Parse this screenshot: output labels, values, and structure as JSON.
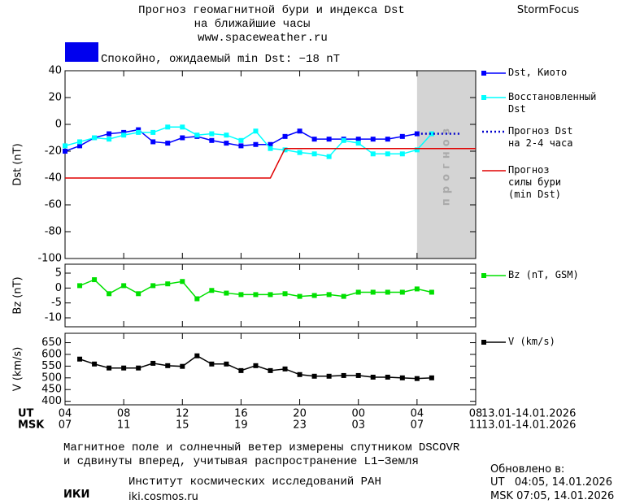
{
  "header": {
    "title": "Прогноз геомагнитной бури и индекса Dst",
    "subtitle": "на ближайшие часы",
    "url": "www.spaceweather.ru",
    "brand": "StormFocus",
    "status": "Спокойно, ожидаемый min Dst: −18 nT"
  },
  "chart_data": [
    {
      "type": "line",
      "ylabel": "Dst (nT)",
      "ylim": [
        -100,
        40
      ],
      "yticks": [
        40,
        20,
        0,
        -20,
        -40,
        -60,
        -80,
        -100
      ],
      "xlim": [
        0,
        28
      ],
      "x": [
        0,
        1,
        2,
        3,
        4,
        5,
        6,
        7,
        8,
        9,
        10,
        11,
        12,
        13,
        14,
        15,
        16,
        17,
        18,
        19,
        20,
        21,
        22,
        23,
        24,
        25,
        26,
        27,
        28
      ],
      "forecast_span": [
        24,
        28
      ],
      "forecast_label": "прогноз",
      "series": [
        {
          "name": "Dst, Киото",
          "color": "#0000ff",
          "marker": "square",
          "values": [
            -20,
            -16,
            -10,
            -7,
            -6,
            -4,
            -13,
            -14,
            -10,
            -9,
            -12,
            -14,
            -16,
            -15,
            -15,
            -9,
            -5,
            -11,
            -11,
            -11,
            -11,
            -11,
            -11,
            -9,
            -7,
            null,
            null,
            null,
            null
          ]
        },
        {
          "name": "Восстановленный\nDst",
          "color": "#00ffff",
          "marker": "square",
          "values": [
            -16,
            -13,
            -10,
            -11,
            -8,
            -6,
            -6,
            -2,
            -2,
            -8,
            -7,
            -8,
            -12,
            -5,
            -18,
            -19,
            -21,
            -22,
            -24,
            -12,
            -14,
            -22,
            -22,
            -22,
            -19,
            -7,
            null,
            null,
            null
          ]
        },
        {
          "name": "Прогноз Dst\nна 2-4 часа",
          "color": "#0000cc",
          "line_style": "dotted",
          "values": [
            null,
            null,
            null,
            null,
            null,
            null,
            null,
            null,
            null,
            null,
            null,
            null,
            null,
            null,
            null,
            null,
            null,
            null,
            null,
            null,
            null,
            null,
            null,
            null,
            -7,
            -7,
            -7,
            -7,
            null
          ]
        },
        {
          "name": "Прогноз\nсилы бури\n(min Dst)",
          "color": "#e00000",
          "values": [
            -40,
            -40,
            -40,
            -40,
            -40,
            -40,
            -40,
            -40,
            -40,
            -40,
            -40,
            -40,
            -40,
            -40,
            -40,
            -18,
            -18,
            -18,
            -18,
            -18,
            -18,
            -18,
            -18,
            -18,
            -18,
            -18,
            -18,
            -18,
            -18
          ]
        }
      ]
    },
    {
      "type": "line",
      "ylabel": "Bz (nT)",
      "ylim": [
        -13,
        8
      ],
      "yticks": [
        5,
        0,
        -5,
        -10
      ],
      "xlim": [
        0,
        28
      ],
      "x": [
        1,
        2,
        3,
        4,
        5,
        6,
        7,
        8,
        9,
        10,
        11,
        12,
        13,
        14,
        15,
        16,
        17,
        18,
        19,
        20,
        21,
        22,
        23,
        24,
        25
      ],
      "series": [
        {
          "name": "Bz (nT, GSM)",
          "color": "#00e000",
          "marker": "square",
          "values": [
            0.8,
            2.8,
            -1.9,
            0.8,
            -1.9,
            0.8,
            1.4,
            2.2,
            -3.6,
            -0.8,
            -1.7,
            -2.2,
            -2.2,
            -2.2,
            -1.9,
            -2.8,
            -2.5,
            -2.2,
            -2.8,
            -1.4,
            -1.4,
            -1.4,
            -1.4,
            -0.3,
            -1.4
          ]
        }
      ]
    },
    {
      "type": "line",
      "ylabel": "V (km/s)",
      "ylim": [
        385,
        690
      ],
      "yticks": [
        650,
        600,
        550,
        500,
        450,
        400
      ],
      "xlim": [
        0,
        28
      ],
      "x": [
        1,
        2,
        3,
        4,
        5,
        6,
        7,
        8,
        9,
        10,
        11,
        12,
        13,
        14,
        15,
        16,
        17,
        18,
        19,
        20,
        21,
        22,
        23,
        24,
        25
      ],
      "series": [
        {
          "name": "V (km/s)",
          "color": "#000000",
          "marker": "square",
          "values": [
            580,
            559,
            542,
            542,
            542,
            562,
            552,
            549,
            594,
            559,
            559,
            531,
            552,
            531,
            538,
            514,
            507,
            507,
            510,
            510,
            503,
            503,
            500,
            497,
            500
          ]
        }
      ],
      "xticks": [
        {
          "value": 0,
          "label": "04"
        },
        {
          "value": 4,
          "label": "08"
        },
        {
          "value": 8,
          "label": "12"
        },
        {
          "value": 12,
          "label": "16"
        },
        {
          "value": 16,
          "label": "20"
        },
        {
          "value": 20,
          "label": "00"
        },
        {
          "value": 24,
          "label": "04"
        },
        {
          "value": 28,
          "label": "08"
        }
      ],
      "x2ticks": [
        {
          "value": 0,
          "label": "07"
        },
        {
          "value": 4,
          "label": "11"
        },
        {
          "value": 8,
          "label": "15"
        },
        {
          "value": 12,
          "label": "19"
        },
        {
          "value": 16,
          "label": "23"
        },
        {
          "value": 20,
          "label": "03"
        },
        {
          "value": 24,
          "label": "07"
        },
        {
          "value": 28,
          "label": "11"
        }
      ],
      "x_row_labels": [
        "UT",
        "MSK"
      ],
      "x_row_notes": [
        "13.01-14.01.2026",
        "13.01-14.01.2026"
      ]
    }
  ],
  "footer": {
    "note_lines": [
      "Магнитное поле и солнечный ветер измерены спутником DSCOVR",
      "и сдвинуты вперед, учитывая распространение L1−Земля"
    ],
    "logo": "ИКИ",
    "institute": "Институт космических исследований РАН",
    "site": "iki.cosmos.ru",
    "updated_title": "Обновлено в:",
    "updated_ut": "UT   04:05, 14.01.2026",
    "updated_msk": "MSK 07:05, 14.01.2026"
  }
}
